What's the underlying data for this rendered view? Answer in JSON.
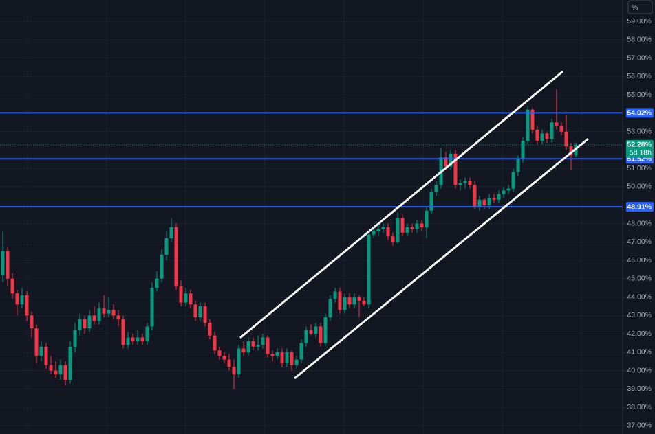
{
  "chart_data": {
    "type": "candlestick",
    "unit_label": "%",
    "up_color": "#089981",
    "down_color": "#f23645",
    "level_color": "#2962ff",
    "ylim": [
      36.55,
      60.16
    ],
    "yticks": [
      {
        "value": 37,
        "label": "37.00%"
      },
      {
        "value": 38,
        "label": "38.00%"
      },
      {
        "value": 39,
        "label": "39.00%"
      },
      {
        "value": 40,
        "label": "40.00%"
      },
      {
        "value": 41,
        "label": "41.00%"
      },
      {
        "value": 42,
        "label": "42.00%"
      },
      {
        "value": 43,
        "label": "43.00%"
      },
      {
        "value": 44,
        "label": "44.00%"
      },
      {
        "value": 45,
        "label": "45.00%"
      },
      {
        "value": 46,
        "label": "46.00%"
      },
      {
        "value": 47,
        "label": "47.00%"
      },
      {
        "value": 48,
        "label": "48.00%"
      },
      {
        "value": 50,
        "label": "50.00%"
      },
      {
        "value": 51,
        "label": "51.00%"
      },
      {
        "value": 53,
        "label": "53.00%"
      },
      {
        "value": 55,
        "label": "55.00%"
      },
      {
        "value": 56,
        "label": "56.00%"
      },
      {
        "value": 57,
        "label": "57.00%"
      },
      {
        "value": 58,
        "label": "58.00%"
      },
      {
        "value": 59,
        "label": "59.00%"
      }
    ],
    "grid": true,
    "levels": [
      {
        "value": 54.02,
        "label": "54.02%"
      },
      {
        "value": 51.52,
        "label": "51.52%"
      },
      {
        "value": 48.91,
        "label": "48.91%"
      }
    ],
    "last_price": {
      "value": 52.28,
      "label": "52.28%",
      "countdown": "5d 18h"
    },
    "ohlc": [
      [
        45.2,
        47.6,
        44.8,
        46.5
      ],
      [
        46.5,
        46.7,
        44.6,
        45.0
      ],
      [
        45.0,
        45.3,
        43.9,
        44.2
      ],
      [
        44.2,
        44.4,
        43.0,
        43.6
      ],
      [
        43.6,
        44.5,
        43.4,
        44.1
      ],
      [
        44.1,
        44.3,
        42.7,
        43.0
      ],
      [
        43.0,
        43.2,
        41.8,
        42.3
      ],
      [
        42.3,
        42.5,
        40.4,
        40.8
      ],
      [
        40.8,
        41.6,
        40.5,
        41.3
      ],
      [
        41.3,
        41.5,
        40.1,
        40.3
      ],
      [
        40.3,
        40.8,
        39.8,
        40.0
      ],
      [
        40.0,
        40.5,
        39.6,
        39.8
      ],
      [
        39.8,
        40.6,
        39.5,
        40.3
      ],
      [
        40.3,
        40.5,
        39.2,
        39.5
      ],
      [
        39.5,
        41.6,
        39.3,
        41.3
      ],
      [
        41.3,
        42.6,
        41.0,
        42.2
      ],
      [
        42.2,
        43.1,
        41.9,
        42.8
      ],
      [
        42.8,
        43.0,
        42.0,
        42.3
      ],
      [
        42.3,
        43.3,
        42.1,
        43.0
      ],
      [
        43.0,
        43.5,
        42.5,
        42.7
      ],
      [
        42.7,
        43.7,
        42.5,
        43.4
      ],
      [
        43.4,
        44.1,
        42.9,
        43.1
      ],
      [
        43.1,
        44.0,
        42.9,
        43.3
      ],
      [
        43.3,
        43.6,
        42.8,
        43.0
      ],
      [
        43.0,
        43.3,
        42.4,
        42.8
      ],
      [
        42.8,
        43.0,
        41.2,
        41.4
      ],
      [
        41.4,
        42.1,
        41.2,
        41.8
      ],
      [
        41.8,
        42.0,
        41.4,
        41.6
      ],
      [
        41.6,
        42.2,
        41.4,
        41.8
      ],
      [
        41.8,
        42.0,
        41.4,
        41.6
      ],
      [
        41.6,
        42.6,
        41.4,
        42.4
      ],
      [
        42.4,
        44.8,
        42.2,
        44.5
      ],
      [
        44.5,
        45.4,
        44.3,
        45.0
      ],
      [
        45.0,
        46.6,
        44.8,
        46.3
      ],
      [
        46.3,
        47.6,
        46.0,
        47.2
      ],
      [
        47.2,
        48.3,
        47.0,
        47.8
      ],
      [
        47.8,
        48.0,
        44.4,
        44.6
      ],
      [
        44.6,
        44.9,
        43.5,
        43.7
      ],
      [
        43.7,
        44.5,
        43.5,
        44.2
      ],
      [
        44.2,
        44.4,
        43.4,
        43.6
      ],
      [
        43.6,
        43.8,
        42.7,
        42.9
      ],
      [
        42.9,
        43.7,
        42.7,
        43.5
      ],
      [
        43.5,
        43.7,
        42.4,
        42.6
      ],
      [
        42.6,
        42.8,
        41.7,
        41.9
      ],
      [
        41.9,
        42.1,
        40.9,
        41.1
      ],
      [
        41.1,
        41.3,
        40.6,
        40.8
      ],
      [
        40.8,
        41.0,
        40.4,
        40.6
      ],
      [
        40.6,
        40.9,
        40.0,
        40.2
      ],
      [
        40.2,
        40.6,
        39.0,
        39.8
      ],
      [
        39.8,
        41.4,
        39.6,
        41.2
      ],
      [
        41.2,
        41.6,
        40.8,
        41.0
      ],
      [
        41.0,
        41.8,
        40.8,
        41.6
      ],
      [
        41.6,
        41.8,
        41.1,
        41.3
      ],
      [
        41.3,
        41.9,
        41.1,
        41.4
      ],
      [
        41.4,
        42.0,
        41.2,
        41.8
      ],
      [
        41.8,
        41.9,
        40.7,
        40.9
      ],
      [
        40.9,
        41.1,
        40.5,
        40.8
      ],
      [
        40.8,
        41.2,
        40.6,
        41.0
      ],
      [
        41.0,
        41.2,
        40.2,
        40.4
      ],
      [
        40.4,
        41.2,
        40.2,
        41.0
      ],
      [
        41.0,
        41.1,
        40.0,
        40.3
      ],
      [
        40.3,
        40.8,
        40.1,
        40.6
      ],
      [
        40.6,
        41.7,
        40.4,
        41.5
      ],
      [
        41.5,
        42.4,
        41.3,
        42.2
      ],
      [
        42.2,
        42.5,
        41.9,
        42.0
      ],
      [
        42.0,
        42.6,
        41.8,
        42.4
      ],
      [
        42.4,
        42.6,
        41.3,
        41.5
      ],
      [
        41.5,
        43.1,
        41.3,
        42.9
      ],
      [
        42.9,
        44.1,
        42.7,
        43.9
      ],
      [
        43.9,
        44.5,
        43.7,
        44.3
      ],
      [
        44.3,
        44.5,
        43.1,
        43.3
      ],
      [
        43.3,
        44.2,
        43.1,
        44.0
      ],
      [
        44.0,
        44.2,
        43.4,
        43.6
      ],
      [
        43.6,
        44.2,
        43.4,
        44.0
      ],
      [
        44.0,
        44.1,
        42.9,
        43.8
      ],
      [
        43.8,
        44.0,
        43.5,
        43.6
      ],
      [
        43.6,
        47.6,
        43.4,
        47.4
      ],
      [
        47.4,
        47.8,
        47.2,
        47.6
      ],
      [
        47.6,
        47.9,
        47.3,
        47.7
      ],
      [
        47.7,
        48.0,
        47.5,
        47.8
      ],
      [
        47.8,
        48.0,
        47.1,
        47.3
      ],
      [
        47.3,
        47.5,
        46.8,
        47.0
      ],
      [
        47.0,
        48.6,
        46.9,
        48.3
      ],
      [
        48.3,
        48.5,
        47.3,
        47.5
      ],
      [
        47.5,
        48.0,
        47.3,
        47.8
      ],
      [
        47.8,
        48.0,
        47.5,
        47.7
      ],
      [
        47.7,
        48.2,
        47.5,
        48.0
      ],
      [
        48.0,
        48.2,
        47.6,
        47.8
      ],
      [
        47.8,
        48.9,
        47.2,
        48.7
      ],
      [
        48.7,
        49.9,
        48.5,
        49.7
      ],
      [
        49.7,
        50.3,
        49.5,
        50.1
      ],
      [
        50.1,
        52.1,
        49.9,
        51.6
      ],
      [
        51.6,
        51.9,
        50.9,
        51.1
      ],
      [
        51.1,
        52.0,
        50.9,
        51.8
      ],
      [
        51.8,
        52.0,
        49.9,
        50.1
      ],
      [
        50.1,
        50.4,
        49.8,
        50.2
      ],
      [
        50.2,
        50.5,
        49.9,
        50.3
      ],
      [
        50.3,
        50.5,
        49.9,
        50.1
      ],
      [
        50.1,
        50.3,
        48.8,
        48.9
      ],
      [
        48.9,
        49.5,
        48.7,
        49.3
      ],
      [
        49.3,
        49.4,
        48.8,
        49.0
      ],
      [
        49.0,
        49.6,
        48.8,
        49.4
      ],
      [
        49.4,
        49.6,
        49.1,
        49.3
      ],
      [
        49.3,
        49.8,
        49.1,
        49.6
      ],
      [
        49.6,
        50.0,
        49.4,
        49.8
      ],
      [
        49.8,
        50.1,
        49.6,
        49.9
      ],
      [
        49.9,
        51.0,
        49.7,
        50.8
      ],
      [
        50.8,
        51.7,
        50.6,
        51.5
      ],
      [
        51.5,
        52.7,
        51.3,
        52.5
      ],
      [
        52.5,
        54.4,
        52.3,
        54.2
      ],
      [
        54.2,
        54.3,
        52.9,
        53.1
      ],
      [
        53.1,
        53.3,
        52.3,
        52.5
      ],
      [
        52.5,
        53.1,
        52.3,
        52.9
      ],
      [
        52.9,
        53.0,
        52.4,
        52.6
      ],
      [
        52.6,
        53.7,
        52.4,
        53.5
      ],
      [
        53.5,
        55.3,
        53.1,
        53.3
      ],
      [
        53.3,
        53.5,
        52.8,
        53.0
      ],
      [
        53.0,
        53.9,
        52.0,
        52.2
      ],
      [
        52.2,
        52.4,
        50.9,
        51.7
      ],
      [
        51.7,
        52.4,
        51.6,
        52.28
      ]
    ]
  }
}
